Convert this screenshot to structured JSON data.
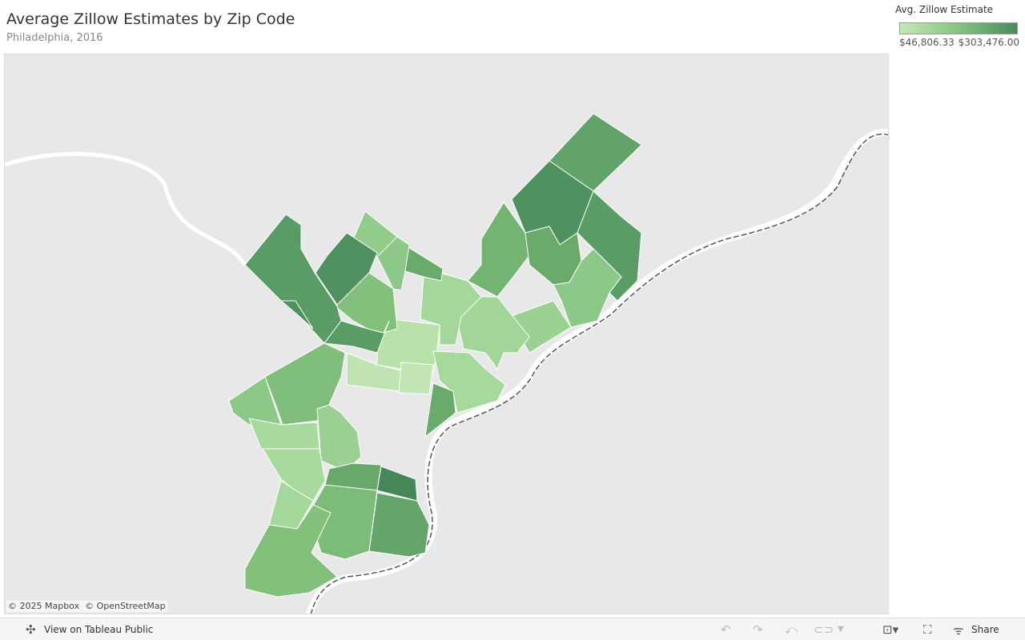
{
  "header": {
    "title": "Average Zillow Estimates by Zip Code",
    "subtitle": "Philadelphia, 2016"
  },
  "legend": {
    "title": "Avg. Zillow Estimate",
    "min_label": "$46,806.33",
    "max_label": "$303,476.00",
    "min_color": "#c5e8b7",
    "max_color": "#4a8c5c"
  },
  "map": {
    "attribution": "© 2025 Mapbox  © OpenStreetMap"
  },
  "footer": {
    "view_label": "View on Tableau Public",
    "share_label": "Share",
    "icons": [
      "undo-icon",
      "redo-icon",
      "revert-icon",
      "refresh-icon",
      "download-icon",
      "fullscreen-icon",
      "share-icon"
    ]
  }
}
